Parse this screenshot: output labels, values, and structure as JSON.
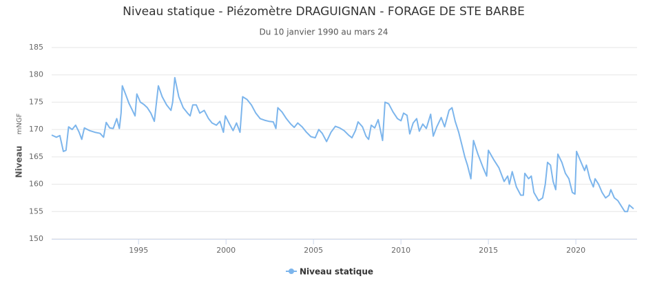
{
  "chart_data": {
    "type": "line",
    "title": "Niveau statique - Piézomètre DRAGUIGNAN - FORAGE DE STE BARBE",
    "subtitle": "Du 10 janvier 1990 au mars 24",
    "y_label": "Niveau",
    "y_unit": "mNGF",
    "x": [
      1990.03,
      1990.3,
      1990.5,
      1990.7,
      1990.85,
      1991.0,
      1991.2,
      1991.4,
      1991.6,
      1991.75,
      1991.9,
      1992.2,
      1992.5,
      1992.8,
      1993.0,
      1993.15,
      1993.35,
      1993.55,
      1993.75,
      1993.9,
      1994.0,
      1994.07,
      1994.25,
      1994.45,
      1994.65,
      1994.8,
      1994.9,
      1995.1,
      1995.3,
      1995.5,
      1995.7,
      1995.9,
      1996.13,
      1996.35,
      1996.6,
      1996.85,
      1996.95,
      1997.07,
      1997.3,
      1997.55,
      1997.8,
      1997.95,
      1998.1,
      1998.3,
      1998.5,
      1998.75,
      1999.0,
      1999.2,
      1999.45,
      1999.65,
      1999.85,
      1999.96,
      2000.2,
      2000.4,
      2000.6,
      2000.8,
      2000.95,
      2001.2,
      2001.45,
      2001.7,
      2001.95,
      2002.2,
      2002.45,
      2002.7,
      2002.85,
      2002.96,
      2003.2,
      2003.45,
      2003.7,
      2003.9,
      2004.1,
      2004.35,
      2004.6,
      2004.85,
      2005.1,
      2005.3,
      2005.5,
      2005.75,
      2006.0,
      2006.25,
      2006.5,
      2006.75,
      2007.0,
      2007.2,
      2007.4,
      2007.55,
      2007.8,
      2008.0,
      2008.15,
      2008.3,
      2008.5,
      2008.7,
      2008.85,
      2008.95,
      2009.09,
      2009.3,
      2009.55,
      2009.8,
      2010.0,
      2010.15,
      2010.35,
      2010.5,
      2010.7,
      2010.9,
      2011.05,
      2011.25,
      2011.45,
      2011.7,
      2011.85,
      2012.05,
      2012.3,
      2012.5,
      2012.75,
      2012.92,
      2013.1,
      2013.3,
      2013.5,
      2013.65,
      2013.8,
      2014.0,
      2014.15,
      2014.4,
      2014.7,
      2014.9,
      2015.0,
      2015.3,
      2015.6,
      2015.9,
      2016.1,
      2016.2,
      2016.36,
      2016.6,
      2016.85,
      2017.0,
      2017.08,
      2017.3,
      2017.45,
      2017.6,
      2017.87,
      2018.1,
      2018.25,
      2018.38,
      2018.55,
      2018.7,
      2018.85,
      2018.97,
      2019.2,
      2019.4,
      2019.6,
      2019.8,
      2019.95,
      2020.04,
      2020.3,
      2020.5,
      2020.6,
      2020.8,
      2021.0,
      2021.1,
      2021.3,
      2021.5,
      2021.7,
      2021.9,
      2022.0,
      2022.2,
      2022.4,
      2022.6,
      2022.8,
      2022.95,
      2023.05,
      2023.3
    ],
    "series": [
      {
        "name": "Niveau statique",
        "color": "#7cb5ec",
        "values": [
          169,
          168.6,
          168.9,
          166,
          166.2,
          170.5,
          170,
          170.8,
          169.5,
          168.2,
          170.3,
          169.8,
          169.5,
          169.3,
          168.6,
          171.3,
          170.3,
          170.2,
          172,
          170.2,
          173,
          178,
          176.5,
          174.8,
          173.5,
          172.5,
          176.5,
          175,
          174.6,
          174,
          173,
          171.5,
          178,
          176,
          174.5,
          173.5,
          175,
          179.5,
          176,
          174,
          173,
          172.5,
          174.5,
          174.5,
          173,
          173.5,
          172,
          171.2,
          170.8,
          171.5,
          169.5,
          172.5,
          171,
          169.8,
          171.2,
          169.5,
          176,
          175.5,
          174.5,
          173,
          172,
          171.7,
          171.5,
          171.4,
          170.2,
          174,
          173.2,
          172,
          171,
          170.4,
          171.2,
          170.5,
          169.5,
          168.7,
          168.5,
          170,
          169.3,
          167.8,
          169.5,
          170.6,
          170.3,
          169.8,
          169,
          168.5,
          169.8,
          171.4,
          170.5,
          168.8,
          168.2,
          170.8,
          170.3,
          171.8,
          169.5,
          168,
          175,
          174.7,
          173.2,
          172,
          171.6,
          173,
          172.6,
          169.2,
          171.2,
          172,
          169.7,
          171,
          170.2,
          172.8,
          168.8,
          170.5,
          172.2,
          170.5,
          173.5,
          174,
          171.5,
          169.5,
          167,
          165,
          163.5,
          161,
          168,
          165.5,
          163,
          161.5,
          166.2,
          164.5,
          163,
          160.5,
          161.5,
          160,
          162.3,
          159.5,
          158,
          158,
          162,
          161,
          161.5,
          158.5,
          157,
          157.5,
          160,
          164,
          163.5,
          160.5,
          159,
          165.5,
          164,
          162,
          161,
          158.5,
          158.2,
          166,
          164,
          162.5,
          163.5,
          161,
          159.5,
          161,
          160,
          158.5,
          157.5,
          158,
          159,
          157.5,
          157,
          156,
          155,
          155,
          156.2,
          155.5
        ]
      }
    ],
    "xlim": [
      1990.03,
      2023.5
    ],
    "xticks": [
      1995,
      2000,
      2005,
      2010,
      2015,
      2020
    ],
    "ylim": [
      150,
      185
    ],
    "yticks": [
      150,
      155,
      160,
      165,
      170,
      175,
      180,
      185
    ],
    "grid": true,
    "legend": "bottom"
  }
}
